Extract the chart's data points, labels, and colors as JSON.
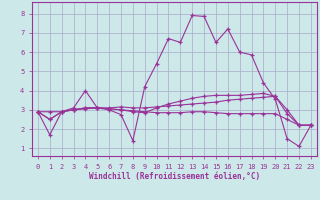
{
  "xlabel": "Windchill (Refroidissement éolien,°C)",
  "ylabel": "",
  "xlim": [
    -0.5,
    23.5
  ],
  "ylim": [
    0.6,
    8.6
  ],
  "yticks": [
    1,
    2,
    3,
    4,
    5,
    6,
    7,
    8
  ],
  "xticks": [
    0,
    1,
    2,
    3,
    4,
    5,
    6,
    7,
    8,
    9,
    10,
    11,
    12,
    13,
    14,
    15,
    16,
    17,
    18,
    19,
    20,
    21,
    22,
    23
  ],
  "xtick_labels": [
    "0",
    "1",
    "2",
    "3",
    "4",
    "5",
    "6",
    "7",
    "8",
    "9",
    "10",
    "11",
    "12",
    "13",
    "14",
    "15",
    "16",
    "17",
    "18",
    "19",
    "20",
    "21",
    "22",
    "23"
  ],
  "background_color": "#cce8e8",
  "grid_color": "#aaaacc",
  "line_color": "#993399",
  "marker": "+",
  "lines": [
    [
      2.9,
      1.7,
      2.9,
      3.1,
      4.0,
      3.1,
      3.0,
      2.75,
      1.4,
      4.2,
      5.4,
      6.7,
      6.5,
      7.9,
      7.85,
      6.5,
      7.2,
      6.0,
      5.85,
      4.4,
      3.55,
      1.5,
      1.1,
      2.2
    ],
    [
      2.9,
      2.9,
      2.9,
      3.0,
      3.1,
      3.1,
      3.1,
      3.15,
      3.1,
      3.1,
      3.15,
      3.2,
      3.25,
      3.3,
      3.35,
      3.4,
      3.5,
      3.55,
      3.6,
      3.65,
      3.7,
      3.0,
      2.2,
      2.2
    ],
    [
      2.9,
      2.5,
      2.9,
      3.0,
      3.05,
      3.1,
      3.05,
      3.0,
      2.95,
      2.9,
      2.85,
      2.85,
      2.85,
      2.9,
      2.9,
      2.85,
      2.8,
      2.8,
      2.8,
      2.8,
      2.8,
      2.5,
      2.2,
      2.2
    ],
    [
      2.9,
      2.5,
      2.9,
      3.0,
      3.1,
      3.1,
      3.05,
      3.0,
      2.9,
      2.85,
      3.1,
      3.3,
      3.45,
      3.6,
      3.7,
      3.75,
      3.75,
      3.75,
      3.8,
      3.85,
      3.7,
      2.8,
      2.2,
      2.2
    ]
  ]
}
